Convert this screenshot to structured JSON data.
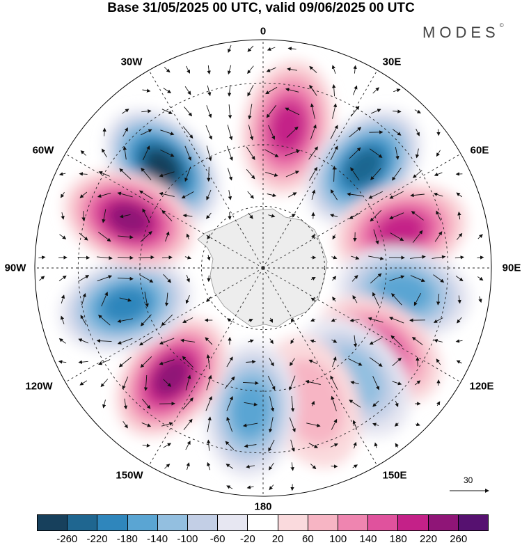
{
  "title": "Base 31/05/2025 00 UTC, valid 09/06/2025 00 UTC",
  "brand": "MODES",
  "brand_mark": "©",
  "longitude_labels": {
    "top": "0",
    "r30e": "30E",
    "r60e": "60E",
    "r90e": "90E",
    "r120e": "120E",
    "r150e": "150E",
    "bottom": "180",
    "r150w": "150W",
    "r120w": "120W",
    "r90w": "90W",
    "r60w": "60W",
    "r30w": "30W"
  },
  "reference_vector": "30",
  "colorbar": {
    "colors": [
      "#17405c",
      "#1f6690",
      "#2f86bc",
      "#5aa5d3",
      "#93bfe0",
      "#c3cfe6",
      "#e7e7f2",
      "#ffffff",
      "#fadadd",
      "#f7b5c4",
      "#ef85b0",
      "#e0529d",
      "#c42188",
      "#8f1577",
      "#561170"
    ],
    "ticks": [
      "-260",
      "-220",
      "-180",
      "-140",
      "-100",
      "-60",
      "-20",
      "20",
      "60",
      "100",
      "140",
      "180",
      "220",
      "260"
    ]
  },
  "map_features": {
    "projection": "south polar stereographic",
    "field": "shaded anomaly with wind vectors",
    "anomaly_centers": [
      {
        "sign": "negative",
        "near": "45W",
        "strength": "-260"
      },
      {
        "sign": "positive",
        "near": "10E",
        "strength": "220"
      },
      {
        "sign": "negative",
        "near": "45E",
        "strength": "-220"
      },
      {
        "sign": "positive",
        "near": "75E",
        "strength": "220"
      },
      {
        "sign": "negative",
        "near": "100E",
        "strength": "-140"
      },
      {
        "sign": "positive",
        "near": "125E",
        "strength": "180"
      },
      {
        "sign": "negative",
        "near": "140E",
        "strength": "-100"
      },
      {
        "sign": "positive",
        "near": "160E",
        "strength": "100"
      },
      {
        "sign": "negative",
        "near": "175W",
        "strength": "-140"
      },
      {
        "sign": "positive",
        "near": "140W",
        "strength": "260"
      },
      {
        "sign": "negative",
        "near": "105W",
        "strength": "-180"
      },
      {
        "sign": "positive",
        "near": "70W",
        "strength": "260"
      }
    ]
  }
}
